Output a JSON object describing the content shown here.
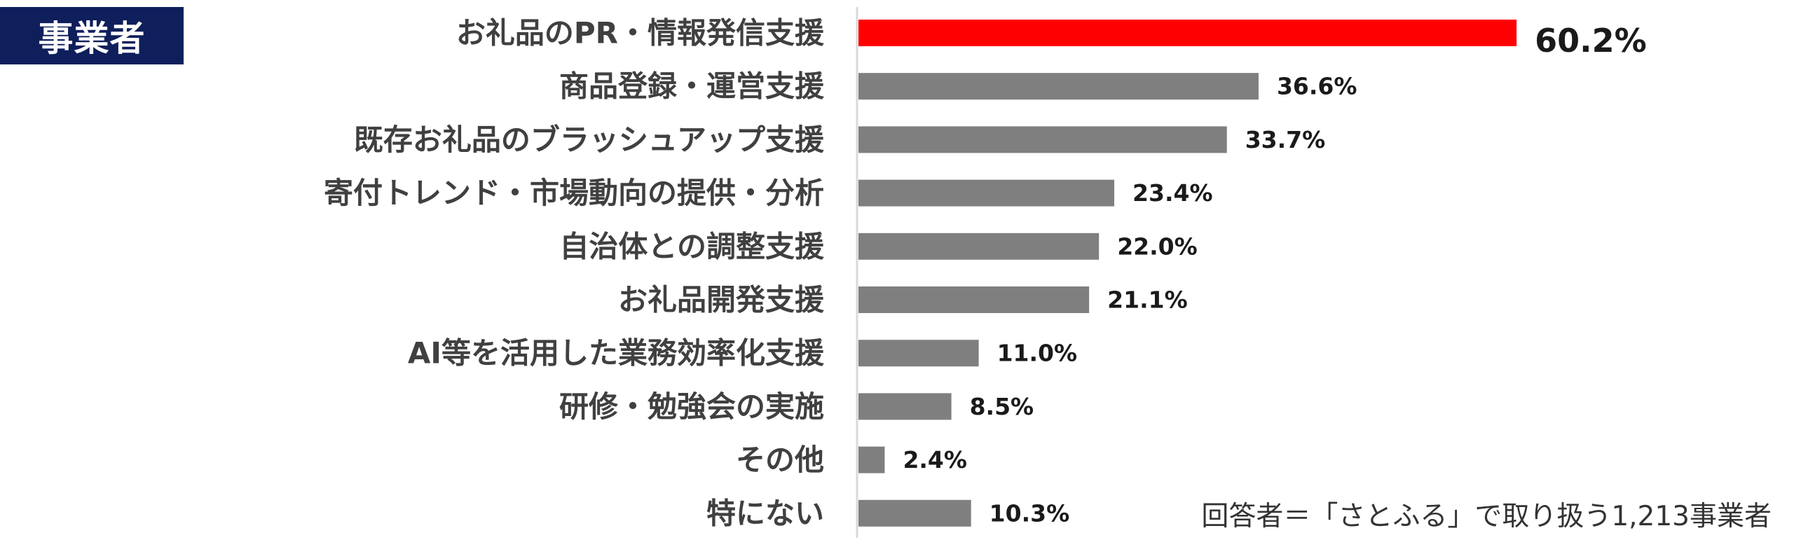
{
  "badge": {
    "text": "事業者"
  },
  "footnote": "回答者＝「さとふる」で取り扱う1,213事業者",
  "colors": {
    "highlight": "#ff0000",
    "default": "#7f7f7f",
    "badge_bg": "#0f1f5c",
    "axis": "#d9d9d9"
  },
  "chart_data": {
    "type": "bar",
    "orientation": "horizontal",
    "categories": [
      "お礼品のPR・情報発信支援",
      "商品登録・運営支援",
      "既存お礼品のブラッシュアップ支援",
      "寄付トレンド・市場動向の提供・分析",
      "自治体との調整支援",
      "お礼品開発支援",
      "AI等を活用した業務効率化支援",
      "研修・勉強会の実施",
      "その他",
      "特にない"
    ],
    "values": [
      60.2,
      36.6,
      33.7,
      23.4,
      22.0,
      21.1,
      11.0,
      8.5,
      2.4,
      10.3
    ],
    "value_labels": [
      "60.2%",
      "36.6%",
      "33.7%",
      "23.4%",
      "22.0%",
      "21.1%",
      "11.0%",
      "8.5%",
      "2.4%",
      "10.3%"
    ],
    "highlight_index": 0,
    "xlim": [
      0,
      100
    ],
    "grid": false,
    "legend": "none"
  }
}
